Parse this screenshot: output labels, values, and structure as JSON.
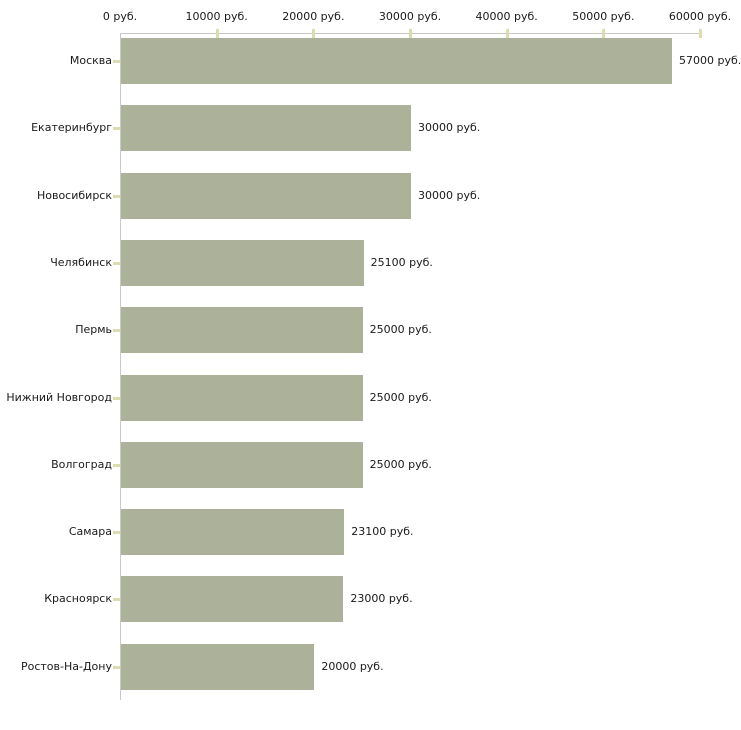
{
  "chart_data": {
    "type": "bar",
    "orientation": "horizontal",
    "title": "",
    "xlabel": "",
    "ylabel": "",
    "grid": false,
    "legend": false,
    "categories": [
      "Москва",
      "Екатеринбург",
      "Новосибирск",
      "Челябинск",
      "Пермь",
      "Нижний Новгород",
      "Волгоград",
      "Самара",
      "Красноярск",
      "Ростов-На-Дону"
    ],
    "values": [
      57000,
      30000,
      30000,
      25100,
      25000,
      25000,
      25000,
      23100,
      23000,
      20000
    ],
    "value_labels": [
      "57000 руб.",
      "30000 руб.",
      "30000 руб.",
      "25100 руб.",
      "25000 руб.",
      "25000 руб.",
      "25000 руб.",
      "23100 руб.",
      "23000 руб.",
      "20000 руб."
    ],
    "x_axis": {
      "position": "top",
      "range": [
        0,
        60000
      ],
      "ticks": [
        0,
        10000,
        20000,
        30000,
        40000,
        50000,
        60000
      ],
      "tick_labels": [
        "0 руб.",
        "10000 руб.",
        "20000 руб.",
        "30000 руб.",
        "40000 руб.",
        "50000 руб.",
        "60000 руб."
      ]
    },
    "colors": {
      "bar": "#abb299",
      "axis_line": "#c9c9c9",
      "tick_mark": "#dcdcae",
      "text": "#1a1a1a",
      "background": "#ffffff"
    }
  }
}
